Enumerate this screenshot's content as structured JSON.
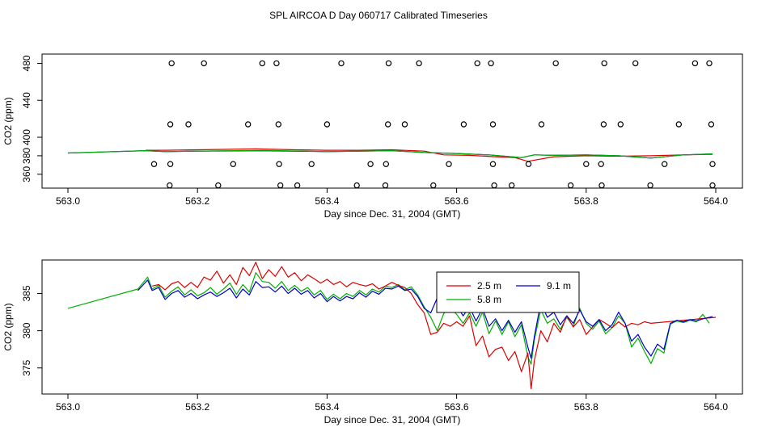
{
  "title": "SPL AIRCOA D  Day 060717  Calibrated Timeseries",
  "colors": {
    "red": "#dd0000",
    "green": "#00b000",
    "blue": "#0000cc",
    "axis": "#000000"
  },
  "chart_data": [
    {
      "type": "scatter",
      "name": "top-panel",
      "xlabel": "Day since Dec. 31, 2004 (GMT)",
      "ylabel": "CO2 (ppm)",
      "xlim": [
        563.0,
        564.0
      ],
      "ylim": [
        345,
        490
      ],
      "xticks": [
        563.0,
        563.2,
        563.4,
        563.6,
        563.8,
        564.0
      ],
      "xtick_labels": [
        "563.0",
        "563.2",
        "563.4",
        "563.6",
        "563.8",
        "564.0"
      ],
      "yticks": [
        360,
        380,
        400,
        440,
        480
      ],
      "ytick_labels": [
        "360",
        "380",
        "400",
        "440",
        "480"
      ],
      "calibration_points": [
        [
          563.16,
          480
        ],
        [
          563.21,
          480
        ],
        [
          563.3,
          480
        ],
        [
          563.322,
          480
        ],
        [
          563.422,
          480
        ],
        [
          563.495,
          480
        ],
        [
          563.542,
          480
        ],
        [
          563.632,
          480
        ],
        [
          563.653,
          480
        ],
        [
          563.753,
          480
        ],
        [
          563.828,
          480
        ],
        [
          563.876,
          480
        ],
        [
          563.968,
          480
        ],
        [
          563.99,
          480
        ],
        [
          563.158,
          414
        ],
        [
          563.186,
          414
        ],
        [
          563.278,
          414
        ],
        [
          563.325,
          414
        ],
        [
          563.4,
          414
        ],
        [
          563.494,
          414
        ],
        [
          563.52,
          414
        ],
        [
          563.611,
          414
        ],
        [
          563.656,
          414
        ],
        [
          563.731,
          414
        ],
        [
          563.827,
          414
        ],
        [
          563.853,
          414
        ],
        [
          563.943,
          414
        ],
        [
          563.993,
          414
        ],
        [
          563.133,
          371
        ],
        [
          563.158,
          371
        ],
        [
          563.255,
          371
        ],
        [
          563.326,
          371
        ],
        [
          563.376,
          371
        ],
        [
          563.467,
          371
        ],
        [
          563.491,
          371
        ],
        [
          563.588,
          371
        ],
        [
          563.656,
          371
        ],
        [
          563.711,
          371
        ],
        [
          563.8,
          371
        ],
        [
          563.823,
          371
        ],
        [
          563.921,
          371
        ],
        [
          563.995,
          371
        ],
        [
          563.157,
          348
        ],
        [
          563.232,
          348
        ],
        [
          563.328,
          348
        ],
        [
          563.354,
          348
        ],
        [
          563.446,
          348
        ],
        [
          563.49,
          348
        ],
        [
          563.564,
          348
        ],
        [
          563.658,
          348
        ],
        [
          563.685,
          348
        ],
        [
          563.776,
          348
        ],
        [
          563.824,
          348
        ],
        [
          563.899,
          348
        ],
        [
          563.995,
          348
        ]
      ],
      "series": [
        {
          "name": "2.5 m",
          "color": "#dd0000",
          "x": [
            563.12,
            563.15,
            563.2,
            563.25,
            563.29,
            563.35,
            563.4,
            563.45,
            563.5,
            563.55,
            563.58,
            563.62,
            563.66,
            563.69,
            563.71,
            563.75,
            563.8,
            563.85,
            563.9,
            563.95,
            563.995
          ],
          "values": [
            386,
            386,
            386.5,
            387,
            387.5,
            386.5,
            386,
            386,
            386.5,
            385,
            381,
            380.5,
            379,
            378,
            374,
            379,
            380,
            379.5,
            380,
            381,
            381.5
          ]
        },
        {
          "name": "9.1 m",
          "color": "#0000cc",
          "x": [
            563.0,
            563.12,
            563.15,
            563.2,
            563.3,
            563.4,
            563.5,
            563.55,
            563.6,
            563.65,
            563.7,
            563.72,
            563.75,
            563.8,
            563.85,
            563.9,
            563.95,
            563.995
          ],
          "values": [
            383,
            385.5,
            384.5,
            385,
            385.5,
            384.5,
            385.5,
            383.5,
            382.5,
            381,
            378,
            381,
            380.5,
            381,
            380,
            377.5,
            381,
            382
          ]
        },
        {
          "name": "5.8 m",
          "color": "#00b000",
          "x": [
            563.0,
            563.12,
            563.15,
            563.2,
            563.3,
            563.4,
            563.5,
            563.55,
            563.6,
            563.65,
            563.7,
            563.72,
            563.75,
            563.8,
            563.85,
            563.9,
            563.95,
            563.995
          ],
          "values": [
            383,
            385.5,
            384.5,
            385,
            386,
            384.5,
            385.5,
            383.5,
            382.5,
            381,
            378,
            381,
            380.5,
            381,
            380,
            377.5,
            381,
            382
          ]
        }
      ]
    },
    {
      "type": "line",
      "name": "bottom-panel",
      "xlabel": "Day since Dec. 31, 2004 (GMT)",
      "ylabel": "CO2 (ppm)",
      "xlim": [
        563.0,
        564.0
      ],
      "ylim": [
        371.5,
        389.5
      ],
      "xticks": [
        563.0,
        563.2,
        563.4,
        563.6,
        563.8,
        564.0
      ],
      "xtick_labels": [
        "563.0",
        "563.2",
        "563.4",
        "563.6",
        "563.8",
        "564.0"
      ],
      "yticks": [
        375,
        380,
        385
      ],
      "ytick_labels": [
        "375",
        "380",
        "385"
      ],
      "legend": {
        "position": "top-center",
        "entries": [
          "2.5 m",
          "9.1 m",
          "5.8 m"
        ]
      },
      "series": [
        {
          "name": "5.8 m",
          "color": "#00b000",
          "x": [
            563.0,
            563.108,
            563.123,
            563.13,
            563.14,
            563.15,
            563.16,
            563.17,
            563.18,
            563.19,
            563.2,
            563.21,
            563.22,
            563.23,
            563.24,
            563.25,
            563.26,
            563.27,
            563.28,
            563.29,
            563.3,
            563.31,
            563.32,
            563.33,
            563.34,
            563.35,
            563.36,
            563.37,
            563.38,
            563.39,
            563.4,
            563.41,
            563.42,
            563.43,
            563.44,
            563.45,
            563.46,
            563.47,
            563.48,
            563.49,
            563.5,
            563.51,
            563.52,
            563.53,
            563.54,
            563.55,
            563.56,
            563.57,
            563.58,
            563.59,
            563.6,
            563.61,
            563.62,
            563.63,
            563.64,
            563.65,
            563.66,
            563.67,
            563.68,
            563.69,
            563.7,
            563.71,
            563.715,
            563.72,
            563.73,
            563.74,
            563.75,
            563.76,
            563.77,
            563.78,
            563.79,
            563.8,
            563.81,
            563.82,
            563.83,
            563.84,
            563.85,
            563.86,
            563.87,
            563.88,
            563.89,
            563.9,
            563.91,
            563.92,
            563.93,
            563.94,
            563.95,
            563.96,
            563.97,
            563.98,
            563.99
          ],
          "values": [
            383.0,
            385.6,
            387.2,
            385.6,
            386.1,
            384.5,
            385.3,
            385.9,
            384.8,
            385.5,
            384.7,
            385.1,
            385.8,
            384.9,
            385.6,
            386.4,
            384.9,
            386.2,
            385.2,
            387.8,
            386.6,
            386.5,
            385.7,
            386.6,
            385.4,
            386.1,
            385.3,
            385.8,
            384.8,
            385.4,
            384.2,
            384.9,
            384.3,
            385.0,
            384.6,
            385.4,
            384.8,
            385.6,
            385.2,
            386.0,
            385.8,
            386.2,
            385.5,
            385.9,
            384.8,
            383.2,
            381.8,
            380.0,
            382.3,
            383.1,
            382.2,
            381.0,
            382.4,
            380.6,
            382.5,
            379.6,
            381.3,
            379.5,
            381.2,
            379.2,
            380.8,
            376.5,
            375.5,
            378.8,
            382.8,
            381.0,
            381.6,
            380.2,
            381.8,
            380.6,
            383.0,
            381.0,
            380.2,
            381.3,
            379.6,
            380.4,
            382.0,
            381.0,
            377.8,
            379.0,
            377.2,
            375.6,
            377.6,
            377.0,
            380.9,
            381.3,
            381.1,
            381.4,
            381.2,
            382.2,
            381.0
          ]
        },
        {
          "name": "2.5 m",
          "color": "#dd0000",
          "x": [
            563.13,
            563.14,
            563.15,
            563.16,
            563.17,
            563.18,
            563.19,
            563.2,
            563.21,
            563.22,
            563.23,
            563.24,
            563.25,
            563.26,
            563.27,
            563.28,
            563.29,
            563.3,
            563.31,
            563.32,
            563.33,
            563.34,
            563.35,
            563.36,
            563.37,
            563.38,
            563.39,
            563.4,
            563.41,
            563.42,
            563.43,
            563.44,
            563.45,
            563.46,
            563.47,
            563.48,
            563.49,
            563.5,
            563.51,
            563.52,
            563.53,
            563.54,
            563.55,
            563.56,
            563.57,
            563.58,
            563.59,
            563.6,
            563.61,
            563.62,
            563.63,
            563.64,
            563.65,
            563.66,
            563.67,
            563.68,
            563.69,
            563.7,
            563.71,
            563.715,
            563.72,
            563.73,
            563.74,
            563.75,
            563.76,
            563.77,
            563.78,
            563.79,
            563.8,
            563.81,
            563.82,
            563.83,
            563.84,
            563.85,
            563.86,
            563.87,
            563.88,
            563.89,
            563.9,
            563.95,
            564.0
          ],
          "values": [
            386.0,
            386.2,
            385.5,
            386.3,
            386.6,
            385.8,
            386.5,
            385.8,
            387.2,
            386.8,
            388.0,
            386.4,
            387.5,
            386.2,
            388.5,
            387.4,
            389.2,
            387.0,
            388.2,
            387.3,
            388.6,
            387.2,
            387.8,
            386.7,
            387.5,
            387.0,
            386.4,
            386.9,
            386.2,
            386.6,
            385.9,
            386.5,
            386.2,
            386.0,
            386.3,
            385.6,
            386.0,
            386.5,
            386.1,
            385.8,
            385.0,
            383.5,
            382.4,
            379.5,
            379.8,
            381.0,
            380.6,
            381.2,
            380.6,
            382.0,
            378.0,
            379.3,
            376.5,
            377.5,
            377.8,
            376.0,
            377.2,
            374.5,
            377.0,
            372.2,
            376.0,
            380.0,
            378.5,
            381.0,
            379.8,
            382.0,
            380.5,
            381.5,
            379.5,
            380.5,
            381.5,
            381.0,
            380.4,
            381.2,
            380.5,
            381.0,
            380.8,
            381.2,
            381.0,
            381.4,
            381.8
          ]
        },
        {
          "name": "9.1 m",
          "color": "#0000cc",
          "x": [
            563.108,
            563.123,
            563.13,
            563.14,
            563.15,
            563.16,
            563.17,
            563.18,
            563.19,
            563.2,
            563.21,
            563.22,
            563.23,
            563.24,
            563.25,
            563.26,
            563.27,
            563.28,
            563.29,
            563.3,
            563.31,
            563.32,
            563.33,
            563.34,
            563.35,
            563.36,
            563.37,
            563.38,
            563.39,
            563.4,
            563.41,
            563.42,
            563.43,
            563.44,
            563.45,
            563.46,
            563.47,
            563.48,
            563.49,
            563.5,
            563.51,
            563.52,
            563.53,
            563.54,
            563.55,
            563.56,
            563.57,
            563.58,
            563.59,
            563.6,
            563.61,
            563.62,
            563.63,
            563.64,
            563.65,
            563.66,
            563.67,
            563.68,
            563.69,
            563.7,
            563.71,
            563.715,
            563.72,
            563.73,
            563.74,
            563.75,
            563.76,
            563.77,
            563.78,
            563.79,
            563.8,
            563.81,
            563.82,
            563.83,
            563.84,
            563.85,
            563.86,
            563.87,
            563.88,
            563.89,
            563.9,
            563.91,
            563.92,
            563.93,
            563.94,
            563.95,
            563.96,
            563.97,
            563.98,
            563.995
          ],
          "values": [
            385.4,
            386.8,
            385.4,
            385.8,
            384.2,
            385.0,
            385.4,
            384.5,
            385.0,
            384.3,
            384.8,
            385.2,
            384.6,
            385.1,
            385.7,
            384.4,
            385.6,
            384.8,
            386.6,
            385.8,
            385.9,
            385.2,
            386.0,
            385.0,
            385.7,
            384.9,
            385.4,
            384.4,
            385.0,
            383.9,
            384.6,
            384.0,
            384.6,
            384.3,
            385.1,
            384.5,
            385.3,
            384.9,
            385.7,
            385.6,
            386.0,
            385.4,
            385.6,
            384.6,
            383.0,
            382.4,
            384.4,
            383.6,
            384.2,
            383.4,
            382.0,
            383.2,
            381.3,
            383.0,
            380.6,
            381.6,
            380.0,
            381.4,
            379.8,
            381.2,
            377.8,
            376.3,
            379.2,
            383.8,
            381.8,
            382.5,
            380.8,
            382.0,
            381.0,
            382.8,
            381.2,
            380.6,
            381.5,
            380.0,
            380.8,
            382.5,
            381.0,
            378.6,
            379.5,
            377.8,
            376.6,
            378.2,
            377.5,
            381.0,
            381.4,
            381.2,
            381.5,
            381.3,
            381.6,
            381.9
          ]
        }
      ]
    }
  ]
}
